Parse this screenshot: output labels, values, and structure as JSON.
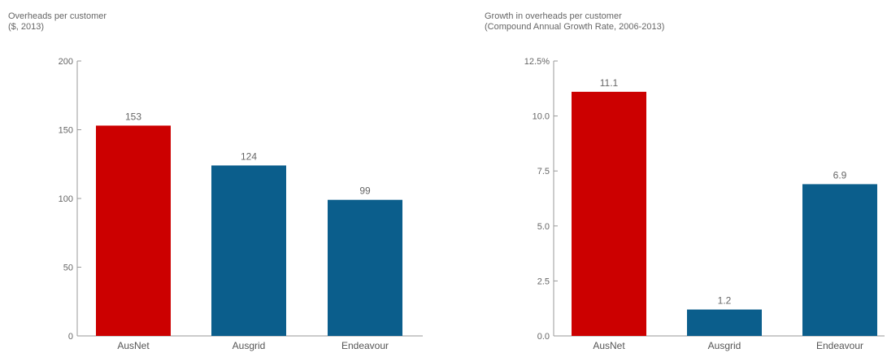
{
  "chart_data": [
    {
      "type": "bar",
      "title": "Overheads per customer",
      "subtitle": "($, 2013)",
      "categories": [
        "AusNet",
        "Ausgrid",
        "Endeavour"
      ],
      "values": [
        153,
        124,
        99
      ],
      "value_labels": [
        "153",
        "124",
        "99"
      ],
      "bar_colors": [
        "#cc0000",
        "#0b5e8c",
        "#0b5e8c"
      ],
      "ylim": [
        0,
        200
      ],
      "yticks": [
        0,
        50,
        100,
        150,
        200
      ],
      "ytick_labels": [
        "0",
        "50",
        "100",
        "150",
        "200"
      ],
      "grid": false
    },
    {
      "type": "bar",
      "title": "Growth in overheads per customer",
      "subtitle": "(Compound Annual Growth Rate, 2006-2013)",
      "categories": [
        "AusNet",
        "Ausgrid",
        "Endeavour"
      ],
      "values": [
        11.1,
        1.2,
        6.9
      ],
      "value_labels": [
        "11.1",
        "1.2",
        "6.9"
      ],
      "bar_colors": [
        "#cc0000",
        "#0b5e8c",
        "#0b5e8c"
      ],
      "ylim": [
        0,
        12.5
      ],
      "yticks": [
        0,
        2.5,
        5,
        7.5,
        10,
        12.5
      ],
      "ytick_labels": [
        "0.0",
        "2.5",
        "5.0",
        "7.5",
        "10.0",
        "12.5%"
      ],
      "grid": false
    }
  ]
}
